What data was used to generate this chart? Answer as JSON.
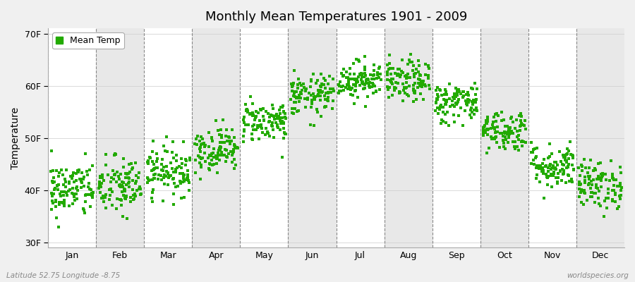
{
  "title": "Monthly Mean Temperatures 1901 - 2009",
  "ylabel": "Temperature",
  "xlabel_months": [
    "Jan",
    "Feb",
    "Mar",
    "Apr",
    "May",
    "Jun",
    "Jul",
    "Aug",
    "Sep",
    "Oct",
    "Nov",
    "Dec"
  ],
  "yticks": [
    30,
    40,
    50,
    60,
    70
  ],
  "ytick_labels": [
    "30F",
    "40F",
    "50F",
    "60F",
    "70F"
  ],
  "ylim": [
    29,
    71
  ],
  "xlim": [
    -0.5,
    12.5
  ],
  "dot_color": "#22AA00",
  "dot_size": 5,
  "background_color": "#F0F0F0",
  "plot_bg_color": "#FFFFFF",
  "band_color_light": "#FFFFFF",
  "band_color_dark": "#E8E8E8",
  "dashed_line_color": "#888888",
  "footnote_left": "Latitude 52.75 Longitude -8.75",
  "footnote_right": "worldspecies.org",
  "legend_label": "Mean Temp",
  "n_years": 109,
  "monthly_means_C": [
    4.5,
    4.8,
    6.5,
    8.8,
    11.8,
    14.5,
    16.2,
    16.0,
    13.8,
    10.8,
    7.0,
    5.0
  ],
  "monthly_stds_C": [
    1.5,
    1.6,
    1.3,
    1.2,
    1.1,
    1.1,
    1.0,
    1.1,
    1.1,
    1.1,
    1.2,
    1.3
  ],
  "seed": 42
}
